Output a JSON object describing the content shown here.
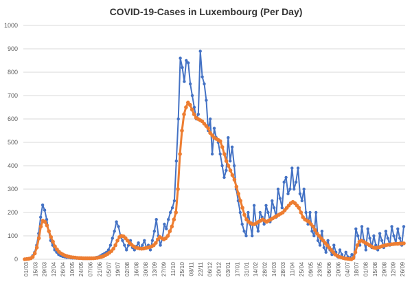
{
  "chart_data": {
    "type": "line",
    "title": "COVID-19-Cases in Luxembourg (Per Day)",
    "xlabel": "",
    "ylabel": "",
    "ylim": [
      0,
      1000
    ],
    "yticks": [
      0,
      100,
      200,
      300,
      400,
      500,
      600,
      700,
      800,
      900,
      1000
    ],
    "grid": true,
    "legend": "none",
    "xtick_labels": [
      "01/03",
      "15/03",
      "29/03",
      "12/04",
      "26/04",
      "10/05",
      "24/05",
      "07/06",
      "21/06",
      "05/07",
      "19/07",
      "02/08",
      "16/08",
      "30/08",
      "13/09",
      "27/09",
      "11/10",
      "25/10",
      "08/11",
      "22/11",
      "06/12",
      "20/12",
      "03/01",
      "17/01",
      "31/01",
      "14/02",
      "28/02",
      "14/03",
      "28/03",
      "11/04",
      "25/04",
      "09/05",
      "23/05",
      "06/06",
      "20/06",
      "04/07",
      "18/07",
      "01/08",
      "15/08",
      "29/08",
      "12/09",
      "26/09"
    ],
    "series": [
      {
        "color": "#4472c4",
        "marker": "circle",
        "values": [
          0,
          2,
          3,
          6,
          15,
          30,
          60,
          110,
          180,
          232,
          210,
          170,
          120,
          80,
          60,
          40,
          30,
          20,
          15,
          12,
          10,
          8,
          8,
          6,
          5,
          5,
          4,
          4,
          4,
          3,
          3,
          3,
          3,
          3,
          4,
          5,
          8,
          10,
          15,
          20,
          25,
          30,
          40,
          60,
          90,
          120,
          160,
          140,
          100,
          80,
          60,
          40,
          60,
          80,
          50,
          40,
          55,
          70,
          45,
          60,
          80,
          50,
          60,
          40,
          80,
          120,
          170,
          100,
          60,
          90,
          150,
          130,
          170,
          200,
          220,
          250,
          420,
          600,
          860,
          820,
          760,
          850,
          840,
          750,
          700,
          650,
          600,
          620,
          890,
          780,
          750,
          680,
          550,
          600,
          450,
          560,
          520,
          500,
          450,
          400,
          350,
          380,
          520,
          420,
          480,
          400,
          300,
          250,
          200,
          150,
          120,
          100,
          200,
          150,
          100,
          230,
          150,
          120,
          200,
          180,
          150,
          230,
          200,
          160,
          250,
          220,
          180,
          300,
          260,
          220,
          330,
          350,
          280,
          300,
          390,
          300,
          330,
          390,
          280,
          250,
          300,
          200,
          150,
          200,
          120,
          100,
          200,
          80,
          60,
          120,
          50,
          30,
          80,
          40,
          20,
          60,
          30,
          10,
          40,
          20,
          5,
          30,
          10,
          5,
          20,
          10,
          130,
          100,
          60,
          140,
          80,
          40,
          130,
          90,
          50,
          100,
          60,
          40,
          110,
          80,
          50,
          120,
          90,
          60,
          140,
          100,
          70,
          130,
          90,
          60,
          140
        ]
      },
      {
        "color": "#ed7d31",
        "marker": "circle",
        "values": [
          0,
          1,
          2,
          4,
          10,
          25,
          50,
          90,
          140,
          165,
          160,
          145,
          120,
          95,
          75,
          55,
          42,
          32,
          25,
          20,
          16,
          13,
          11,
          9,
          8,
          7,
          6,
          5,
          5,
          4,
          4,
          4,
          4,
          4,
          4,
          5,
          6,
          8,
          10,
          13,
          17,
          22,
          28,
          35,
          45,
          60,
          80,
          95,
          100,
          98,
          90,
          80,
          70,
          62,
          55,
          50,
          48,
          46,
          45,
          46,
          48,
          50,
          52,
          55,
          60,
          70,
          85,
          95,
          90,
          85,
          90,
          100,
          120,
          140,
          170,
          200,
          300,
          450,
          550,
          620,
          650,
          670,
          660,
          640,
          620,
          605,
          600,
          595,
          590,
          580,
          570,
          560,
          540,
          530,
          520,
          515,
          510,
          505,
          480,
          450,
          420,
          400,
          380,
          360,
          340,
          310,
          280,
          250,
          220,
          190,
          170,
          160,
          155,
          150,
          150,
          155,
          160,
          165,
          170,
          165,
          160,
          165,
          170,
          175,
          180,
          185,
          190,
          195,
          200,
          210,
          220,
          230,
          240,
          245,
          240,
          230,
          220,
          200,
          180,
          170,
          165,
          160,
          150,
          140,
          125,
          110,
          100,
          90,
          80,
          70,
          60,
          50,
          40,
          30,
          20,
          15,
          10,
          8,
          5,
          3,
          2,
          1,
          0,
          5,
          30,
          60,
          75,
          80,
          75,
          70,
          65,
          60,
          55,
          50,
          48,
          50,
          52,
          55,
          58,
          60,
          62,
          63,
          64,
          65,
          66,
          66,
          67,
          67,
          68
        ]
      }
    ]
  }
}
